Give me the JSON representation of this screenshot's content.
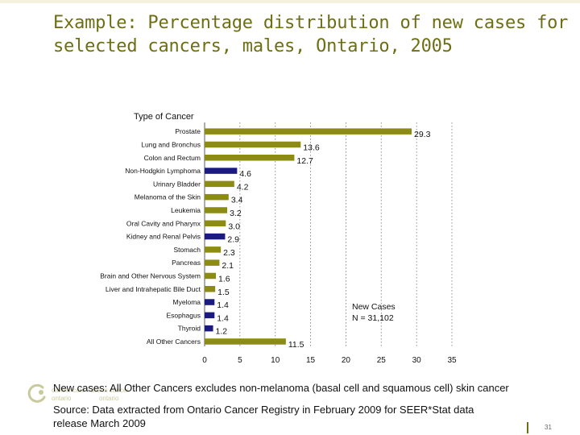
{
  "slide": {
    "title": "Example: Percentage distribution of new cases for selected cancers, males, Ontario, 2005",
    "footnote1": "New cases: All Other Cancers excludes non-melanoma (basal cell and squamous cell) skin cancer",
    "footnote2_line1": "Source: Data extracted from Ontario Cancer Registry in February 2009 for SEER*Stat data",
    "footnote2_line2": "release March 2009",
    "page_number": "31",
    "logo": {
      "line1_left": "cancer care",
      "line1_right": "action cancer",
      "line2_left": "ontario",
      "line2_right": "ontario"
    }
  },
  "colors": {
    "olive": "#8c8c14",
    "navy": "#1a1a80",
    "title": "#6e6e14"
  },
  "chart_data": {
    "type": "bar",
    "orientation": "horizontal",
    "axis_title": "Type of Cancer",
    "annotation_line1": "New Cases",
    "annotation_line2": "N = 31,102",
    "xlim": [
      0,
      35
    ],
    "xticks": [
      0,
      5,
      10,
      15,
      20,
      25,
      30,
      35
    ],
    "grid": "vertical dotted lines at ticks",
    "categories": [
      "Prostate",
      "Lung and Bronchus",
      "Colon and Rectum",
      "Non-Hodgkin Lymphoma",
      "Urinary Bladder",
      "Melanoma of the Skin",
      "Leukemia",
      "Oral Cavity and Pharynx",
      "Kidney and Renal Pelvis",
      "Stomach",
      "Pancreas",
      "Brain and Other Nervous System",
      "Liver and Intrahepatic Bile Duct",
      "Myeloma",
      "Esophagus",
      "Thyroid",
      "All Other Cancers"
    ],
    "values": [
      29.3,
      13.6,
      12.7,
      4.6,
      4.2,
      3.4,
      3.2,
      3.0,
      2.9,
      2.3,
      2.1,
      1.6,
      1.5,
      1.4,
      1.4,
      1.2,
      11.5
    ],
    "value_labels": [
      "29.3",
      "13.6",
      "12.7",
      "4.6",
      "4.2",
      "3.4",
      "3.2",
      "3.0",
      "2.9",
      "2.3",
      "2.1",
      "1.6",
      "1.5",
      "1.4",
      "1.4",
      "1.2",
      "11.5"
    ],
    "bar_colors": [
      "olive",
      "olive",
      "olive",
      "navy",
      "olive",
      "olive",
      "olive",
      "olive",
      "navy",
      "olive",
      "olive",
      "olive",
      "olive",
      "navy",
      "navy",
      "navy",
      "olive"
    ]
  }
}
